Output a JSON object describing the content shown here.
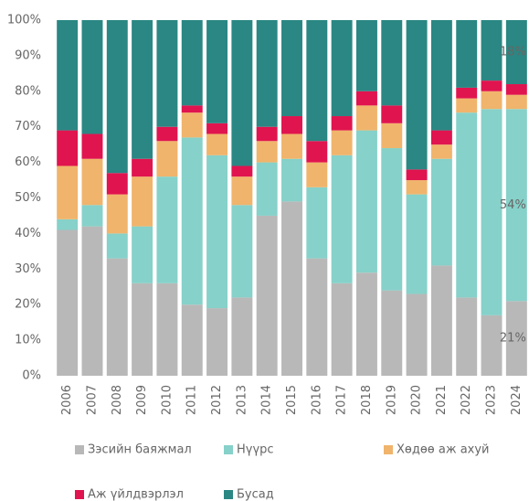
{
  "chart_data": {
    "type": "stacked_bar",
    "categories": [
      "2006",
      "2007",
      "2008",
      "2009",
      "2010",
      "2011",
      "2012",
      "2013",
      "2014",
      "2015",
      "2016",
      "2017",
      "2018",
      "2019",
      "2020",
      "2021",
      "2022",
      "2023",
      "2024"
    ],
    "series": [
      {
        "name": "Зэсийн баяжмал",
        "color": "#b8b8b8",
        "values": [
          41,
          42,
          33,
          26,
          26,
          20,
          19,
          22,
          45,
          49,
          33,
          26,
          29,
          24,
          23,
          31,
          22,
          17,
          21
        ],
        "value_labels": [
          null,
          null,
          null,
          null,
          null,
          null,
          null,
          null,
          null,
          null,
          null,
          null,
          null,
          null,
          null,
          null,
          null,
          null,
          "21%"
        ]
      },
      {
        "name": "Нүүрс",
        "color": "#86d1c9",
        "values": [
          3,
          6,
          7,
          16,
          30,
          47,
          43,
          26,
          15,
          12,
          20,
          36,
          40,
          40,
          28,
          30,
          52,
          58,
          54
        ],
        "value_labels": [
          null,
          null,
          null,
          null,
          null,
          null,
          null,
          null,
          null,
          null,
          null,
          null,
          null,
          null,
          null,
          null,
          null,
          null,
          "54%"
        ]
      },
      {
        "name": "Хөдөө аж ахуй",
        "color": "#f0b46c",
        "values": [
          15,
          13,
          11,
          14,
          10,
          7,
          6,
          8,
          6,
          7,
          7,
          7,
          7,
          7,
          4,
          4,
          4,
          5,
          4
        ]
      },
      {
        "name": "Аж үйлдвэрлэл",
        "color": "#e0144f",
        "values": [
          10,
          7,
          6,
          5,
          4,
          2,
          3,
          3,
          4,
          5,
          6,
          4,
          4,
          5,
          3,
          4,
          3,
          3,
          3
        ]
      },
      {
        "name": "Бусад",
        "color": "#2a8783",
        "values": [
          31,
          32,
          43,
          39,
          30,
          24,
          29,
          41,
          30,
          27,
          34,
          27,
          20,
          24,
          42,
          31,
          19,
          17,
          18
        ],
        "value_labels": [
          null,
          null,
          null,
          null,
          null,
          null,
          null,
          null,
          null,
          null,
          null,
          null,
          null,
          null,
          null,
          null,
          null,
          null,
          "18%"
        ]
      }
    ],
    "ylim": [
      0,
      100
    ],
    "yticks": [
      {
        "value": 0,
        "label": "0%"
      },
      {
        "value": 10,
        "label": "10%"
      },
      {
        "value": 20,
        "label": "20%"
      },
      {
        "value": 30,
        "label": "30%"
      },
      {
        "value": 40,
        "label": "40%"
      },
      {
        "value": 50,
        "label": "50%"
      },
      {
        "value": 60,
        "label": "60%"
      },
      {
        "value": 70,
        "label": "70%"
      },
      {
        "value": 80,
        "label": "80%"
      },
      {
        "value": 90,
        "label": "90%"
      },
      {
        "value": 100,
        "label": "100%"
      }
    ],
    "grid": false,
    "legend": "bottom"
  }
}
